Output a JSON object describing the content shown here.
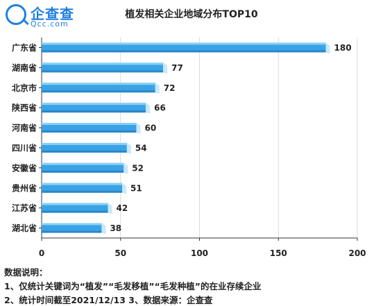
{
  "logo": {
    "name": "企查查",
    "domain": "Qcc.com"
  },
  "colors": {
    "bar_top": "#8dd0f5",
    "bar_main": "#3aa3e6",
    "bar_bottom": "#2a86c8",
    "bar_end": "#c9e8fb",
    "axis": "#333333",
    "grid": "#dcdcdc"
  },
  "chart_data": {
    "type": "bar",
    "orientation": "horizontal",
    "title": "植发相关企业地域分布TOP10",
    "categories": [
      "广东省",
      "湖南省",
      "北京市",
      "陕西省",
      "河南省",
      "四川省",
      "安徽省",
      "贵州省",
      "江苏省",
      "湖北省"
    ],
    "values": [
      180,
      77,
      72,
      66,
      60,
      54,
      52,
      51,
      42,
      38
    ],
    "xlim": [
      0,
      200
    ],
    "xticks": [
      0,
      50,
      100,
      150,
      200
    ],
    "grid": "vertical",
    "legend": "none",
    "data_labels": true
  },
  "notes": {
    "heading": "数据说明：",
    "line1": "1、仅统计关键词为“植发”“毛发移植”“毛发种植”的在业存续企业",
    "line2": "2、统计时间截至2021/12/13      3、数据来源：企查查"
  }
}
